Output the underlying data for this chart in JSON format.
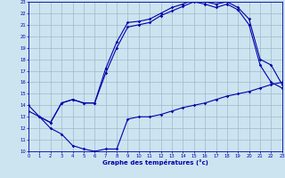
{
  "xlabel": "Graphe des températures (°c)",
  "bg_color": "#cce4f0",
  "grid_color": "#99bbcc",
  "line_color": "#0000aa",
  "xmin": 0,
  "xmax": 23,
  "ymin": 10,
  "ymax": 23,
  "line1_x": [
    0,
    1,
    2,
    3,
    4,
    5,
    6,
    7,
    8,
    9,
    10,
    11,
    12,
    13,
    14,
    15,
    16,
    17,
    18,
    19,
    20,
    21,
    22,
    23
  ],
  "line1_y": [
    14.0,
    13.0,
    12.5,
    14.2,
    14.5,
    14.2,
    14.2,
    17.2,
    19.5,
    21.2,
    21.3,
    21.5,
    22.0,
    22.5,
    22.8,
    23.2,
    23.0,
    22.8,
    23.0,
    22.5,
    21.5,
    18.0,
    17.5,
    15.8
  ],
  "line2_x": [
    0,
    2,
    3,
    4,
    5,
    6,
    7,
    8,
    9,
    10,
    11,
    12,
    13,
    14,
    15,
    16,
    17,
    18,
    19,
    20,
    21,
    22,
    23
  ],
  "line2_y": [
    13.5,
    12.5,
    14.2,
    14.5,
    14.2,
    14.2,
    16.8,
    19.0,
    20.8,
    21.0,
    21.2,
    21.8,
    22.2,
    22.6,
    23.0,
    22.8,
    22.5,
    22.8,
    22.3,
    21.0,
    17.5,
    16.0,
    15.5
  ],
  "line3_x": [
    1,
    2,
    3,
    4,
    5,
    6,
    7,
    8,
    9,
    10,
    11,
    12,
    13,
    14,
    15,
    16,
    17,
    18,
    19,
    20,
    21,
    22,
    23
  ],
  "line3_y": [
    13.0,
    12.0,
    11.5,
    10.5,
    10.2,
    10.0,
    10.2,
    10.2,
    12.8,
    13.0,
    13.0,
    13.2,
    13.5,
    13.8,
    14.0,
    14.2,
    14.5,
    14.8,
    15.0,
    15.2,
    15.5,
    15.8,
    16.0
  ]
}
